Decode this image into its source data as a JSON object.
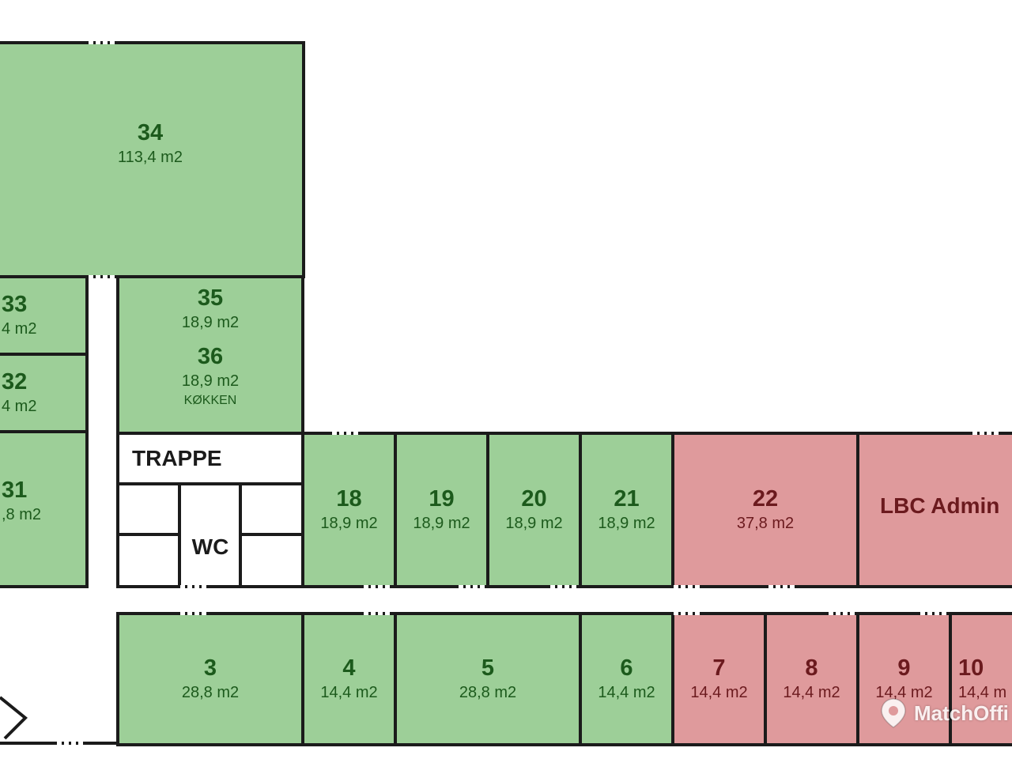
{
  "rooms": {
    "r34": {
      "number": "34",
      "area": "113,4 m2",
      "status": "available"
    },
    "r33": {
      "number": "33",
      "area": "4 m2",
      "status": "available"
    },
    "r32": {
      "number": "32",
      "area": "4 m2",
      "status": "available"
    },
    "r31": {
      "number": "31",
      "area": ",8 m2",
      "status": "available"
    },
    "r35": {
      "number": "35",
      "area": "18,9 m2",
      "status": "available"
    },
    "r36": {
      "number": "36",
      "area": "18,9 m2",
      "note": "KØKKEN",
      "status": "available"
    },
    "trappe": {
      "label": "TRAPPE"
    },
    "wc": {
      "label": "WC"
    },
    "r18": {
      "number": "18",
      "area": "18,9 m2",
      "status": "available"
    },
    "r19": {
      "number": "19",
      "area": "18,9 m2",
      "status": "available"
    },
    "r20": {
      "number": "20",
      "area": "18,9 m2",
      "status": "available"
    },
    "r21": {
      "number": "21",
      "area": "18,9 m2",
      "status": "available"
    },
    "r22": {
      "number": "22",
      "area": "37,8 m2",
      "status": "occupied"
    },
    "lbc": {
      "label": "LBC Admin",
      "status": "occupied"
    },
    "r3": {
      "number": "3",
      "area": "28,8 m2",
      "status": "available"
    },
    "r4": {
      "number": "4",
      "area": "14,4 m2",
      "status": "available"
    },
    "r5": {
      "number": "5",
      "area": "28,8 m2",
      "status": "available"
    },
    "r6": {
      "number": "6",
      "area": "14,4 m2",
      "status": "available"
    },
    "r7": {
      "number": "7",
      "area": "14,4 m2",
      "status": "occupied"
    },
    "r8": {
      "number": "8",
      "area": "14,4 m2",
      "status": "occupied"
    },
    "r9": {
      "number": "9",
      "area": "14,4 m2",
      "status": "occupied"
    },
    "r10": {
      "number": "10",
      "area": "14,4 m",
      "status": "occupied"
    }
  },
  "colors": {
    "available": "#9dcf98",
    "occupied": "#df9a9c",
    "wall": "#1b1b1b"
  },
  "watermark": {
    "text": "MatchOffi",
    "icon": "location-pin-icon"
  }
}
